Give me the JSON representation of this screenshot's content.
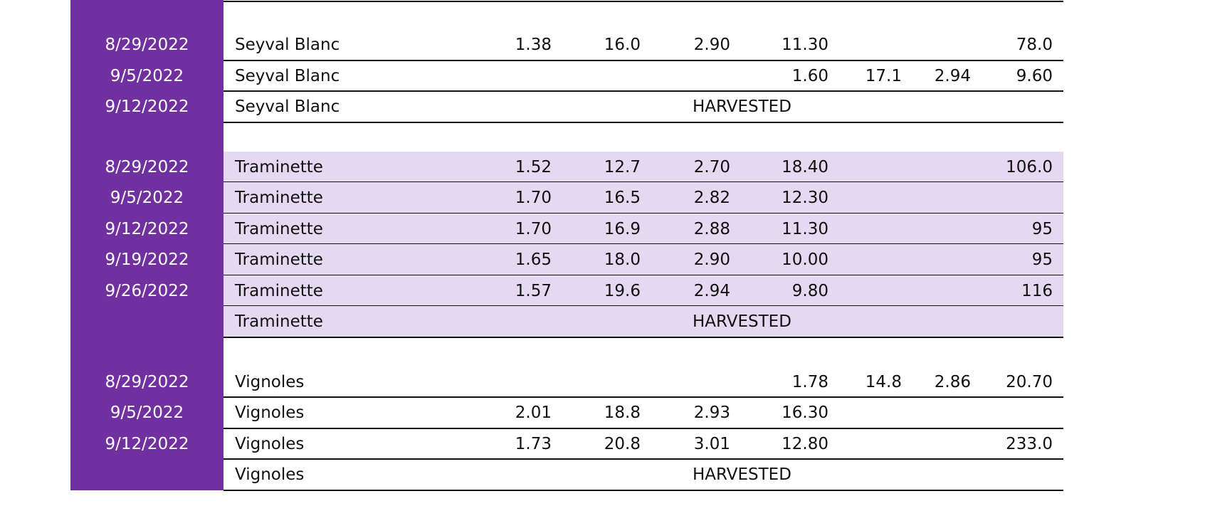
{
  "table": {
    "groups": [
      {
        "rows": [
          {
            "date": "8/29/2022",
            "variety": "Seyval Blanc",
            "cells": [
              "1.38",
              "16.0",
              "2.90",
              "11.30",
              null,
              null,
              "78.0"
            ]
          },
          {
            "date": "9/5/2022",
            "variety": "Seyval Blanc",
            "cells": [
              null,
              null,
              null,
              "1.60",
              "17.1",
              "2.94",
              "9.60"
            ]
          },
          {
            "date": "9/12/2022",
            "variety": "Seyval Blanc",
            "note": "HARVESTED"
          }
        ]
      },
      {
        "rows": [
          {
            "date": "8/29/2022",
            "variety": "Traminette",
            "cells": [
              "1.52",
              "12.7",
              "2.70",
              "18.40",
              null,
              null,
              "106.0"
            ]
          },
          {
            "date": "9/5/2022",
            "variety": "Traminette",
            "cells": [
              "1.70",
              "16.5",
              "2.82",
              "12.30",
              null,
              null,
              null
            ]
          },
          {
            "date": "9/12/2022",
            "variety": "Traminette",
            "cells": [
              "1.70",
              "16.9",
              "2.88",
              "11.30",
              null,
              null,
              "95"
            ]
          },
          {
            "date": "9/19/2022",
            "variety": "Traminette",
            "cells": [
              "1.65",
              "18.0",
              "2.90",
              "10.00",
              null,
              null,
              "95"
            ]
          },
          {
            "date": "9/26/2022",
            "variety": "Traminette",
            "cells": [
              "1.57",
              "19.6",
              "2.94",
              "9.80",
              null,
              null,
              "116"
            ]
          },
          {
            "date": null,
            "variety": "Traminette",
            "note": "HARVESTED"
          }
        ]
      },
      {
        "rows": [
          {
            "date": "8/29/2022",
            "variety": "Vignoles",
            "cells": [
              null,
              null,
              null,
              "1.78",
              "14.8",
              "2.86",
              "20.70"
            ]
          },
          {
            "date": "9/5/2022",
            "variety": "Vignoles",
            "cells": [
              "2.01",
              "18.8",
              "2.93",
              "16.30",
              null,
              null,
              null
            ]
          },
          {
            "date": "9/12/2022",
            "variety": "Vignoles",
            "cells": [
              "1.73",
              "20.8",
              "3.01",
              "12.80",
              null,
              null,
              "233.0"
            ]
          },
          {
            "date": null,
            "variety": "Vignoles",
            "note": "HARVESTED"
          }
        ]
      }
    ]
  }
}
